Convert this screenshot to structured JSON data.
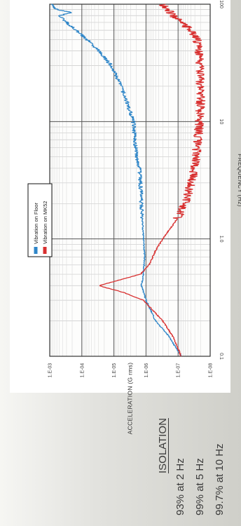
{
  "isolation": {
    "title": "ISOLATION",
    "lines": [
      "93% at 2 Hz",
      "99% at 5 Hz",
      "99.7% at 10 Hz"
    ]
  },
  "chart_data": {
    "type": "line",
    "xlabel": "FREQUENCY (Hz)",
    "ylabel": "ACCELERATION (G rms)",
    "x_scale": "log",
    "y_scale": "log",
    "xlim": [
      0.1,
      100
    ],
    "ylim": [
      1e-08,
      0.001
    ],
    "x_ticks": [
      "0.1",
      "1.0",
      "10",
      "100"
    ],
    "y_ticks": [
      "1.E-08",
      "1.E-07",
      "1.E-06",
      "1.E-05",
      "1.E-04",
      "1.E-03"
    ],
    "grid": true,
    "legend_position": "top-left",
    "series": [
      {
        "name": "Vibration on Floor",
        "color": "#2f86c8",
        "x": [
          0.1,
          0.15,
          0.2,
          0.3,
          0.4,
          0.5,
          0.7,
          1.0,
          1.5,
          2,
          3,
          4,
          5,
          7,
          10,
          15,
          20,
          30,
          40,
          50,
          60,
          70,
          80,
          85,
          90,
          100
        ],
        "y": [
          8e-08,
          2e-07,
          5e-07,
          1e-06,
          1.4e-06,
          1.2e-06,
          1.1e-06,
          1.2e-06,
          1.3e-06,
          1.4e-06,
          1.5e-06,
          1.6e-06,
          2e-06,
          2.2e-06,
          2.5e-06,
          4e-06,
          6e-06,
          1.2e-05,
          3e-05,
          7e-05,
          0.00015,
          0.0003,
          0.0005,
          0.0002,
          0.0006,
          0.0009
        ]
      },
      {
        "name": "Vibration on MK52",
        "color": "#d83030",
        "x": [
          0.1,
          0.15,
          0.2,
          0.3,
          0.35,
          0.4,
          0.45,
          0.5,
          0.6,
          0.8,
          1.0,
          1.3,
          1.6,
          2,
          3,
          4,
          5,
          7,
          10,
          15,
          20,
          30,
          40,
          50,
          60,
          70,
          80,
          90,
          100
        ],
        "y": [
          8e-08,
          1.5e-07,
          3e-07,
          1.2e-06,
          5e-06,
          3e-05,
          6e-06,
          1.5e-06,
          8e-07,
          5e-07,
          3e-07,
          1.5e-07,
          9e-08,
          6e-08,
          4e-08,
          3e-08,
          2.8e-08,
          2.4e-08,
          2.2e-08,
          2e-08,
          2e-08,
          2e-08,
          2.2e-08,
          2.6e-08,
          4e-08,
          8e-08,
          1.5e-07,
          2e-07,
          3e-07
        ]
      }
    ]
  }
}
